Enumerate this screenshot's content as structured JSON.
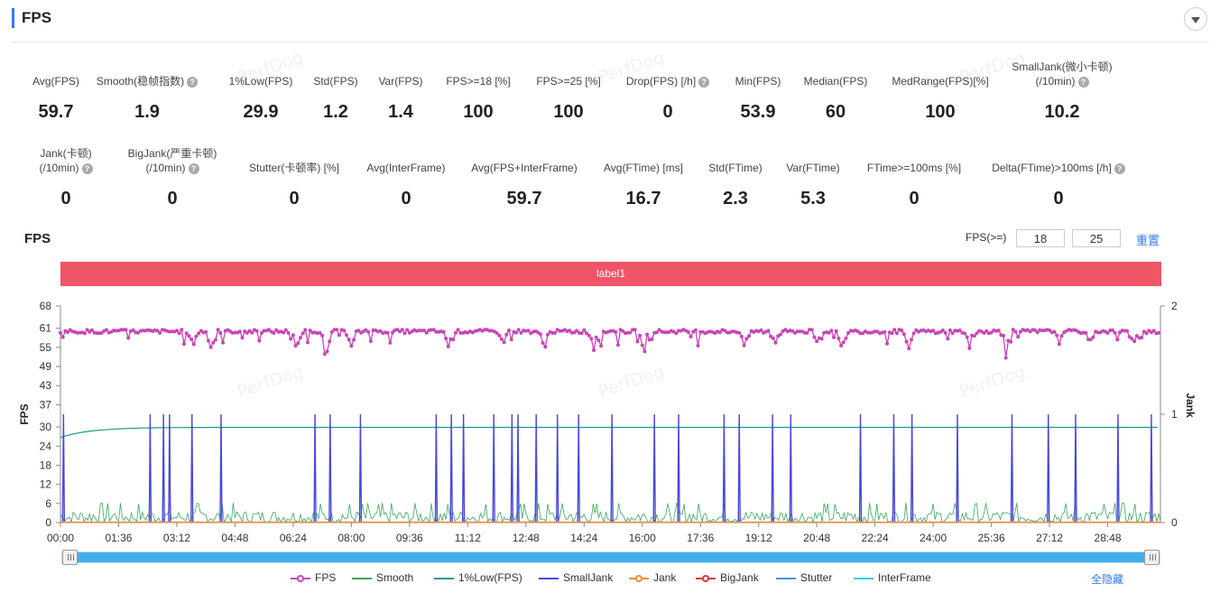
{
  "header": {
    "title": "FPS"
  },
  "metrics_row1": [
    {
      "label": "Avg(FPS)",
      "value": "59.7",
      "help": false
    },
    {
      "label": "Smooth(稳帧指数)",
      "value": "1.9",
      "help": true
    },
    {
      "label": "1%Low(FPS)",
      "value": "29.9",
      "help": false
    },
    {
      "label": "Std(FPS)",
      "value": "1.2",
      "help": false
    },
    {
      "label": "Var(FPS)",
      "value": "1.4",
      "help": false
    },
    {
      "label": "FPS>=18 [%]",
      "value": "100",
      "help": false
    },
    {
      "label": "FPS>=25 [%]",
      "value": "100",
      "help": false
    },
    {
      "label": "Drop(FPS) [/h]",
      "value": "0",
      "help": true
    },
    {
      "label": "Min(FPS)",
      "value": "53.9",
      "help": false
    },
    {
      "label": "Median(FPS)",
      "value": "60",
      "help": false
    },
    {
      "label": "MedRange(FPS)[%]",
      "value": "100",
      "help": false
    },
    {
      "label": "SmallJank(微小卡顿)",
      "label2": "(/10min)",
      "value": "10.2",
      "help": true
    }
  ],
  "metrics_row2": [
    {
      "label": "Jank(卡顿)",
      "label2": "(/10min)",
      "value": "0",
      "help": true
    },
    {
      "label": "BigJank(严重卡顿)",
      "label2": "(/10min)",
      "value": "0",
      "help": true
    },
    {
      "label": "Stutter(卡顿率) [%]",
      "value": "0",
      "help": false
    },
    {
      "label": "Avg(InterFrame)",
      "value": "0",
      "help": false
    },
    {
      "label": "Avg(FPS+InterFrame)",
      "value": "59.7",
      "help": false
    },
    {
      "label": "Avg(FTime) [ms]",
      "value": "16.7",
      "help": false
    },
    {
      "label": "Std(FTime)",
      "value": "2.3",
      "help": false
    },
    {
      "label": "Var(FTime)",
      "value": "5.3",
      "help": false
    },
    {
      "label": "FTime>=100ms [%]",
      "value": "0",
      "help": false
    },
    {
      "label": "Delta(FTime)>100ms [/h]",
      "value": "0",
      "help": true
    }
  ],
  "watermark": "PerfDog",
  "chart_section": {
    "title": "FPS",
    "filter_label": "FPS(>=)",
    "threshold_low": "18",
    "threshold_high": "25",
    "reset_label": "重置",
    "band_label": "label1",
    "hide_all_label": "全隐藏"
  },
  "chart_data": {
    "type": "line",
    "title": "FPS",
    "ylabel": "FPS",
    "y2label": "Jank",
    "ylim": [
      0,
      68
    ],
    "y2lim": [
      0,
      2
    ],
    "yticks": [
      "0",
      "6",
      "12",
      "18",
      "24",
      "30",
      "37",
      "43",
      "49",
      "55",
      "61",
      "68"
    ],
    "y2ticks": [
      "0",
      "1",
      "2"
    ],
    "xticks": [
      "00:00",
      "01:36",
      "03:12",
      "04:48",
      "06:24",
      "08:00",
      "09:36",
      "11:12",
      "12:48",
      "14:24",
      "16:00",
      "17:36",
      "19:12",
      "20:48",
      "22:24",
      "24:00",
      "25:36",
      "27:12",
      "28:48"
    ],
    "x_range_seconds": [
      0,
      1815
    ],
    "fps_baseline": 60,
    "fps_dips_seconds": [
      220,
      250,
      390,
      440,
      480,
      640,
      730,
      800,
      880,
      960,
      1130,
      1180,
      1250,
      1290,
      1400,
      1500,
      1560,
      1650,
      1700,
      1770
    ],
    "onepct_low_final": 29.9,
    "small_jank_seconds": [
      5,
      148,
      170,
      180,
      217,
      265,
      420,
      445,
      495,
      620,
      645,
      665,
      715,
      745,
      755,
      785,
      820,
      855,
      910,
      980,
      1020,
      1095,
      1120,
      1175,
      1205,
      1320,
      1375,
      1405,
      1480,
      1570,
      1630,
      1675,
      1745,
      1800
    ],
    "legend": [
      {
        "name": "FPS",
        "color": "#c846b8",
        "dot": true
      },
      {
        "name": "Smooth",
        "color": "#3aa757",
        "dot": false
      },
      {
        "name": "1%Low(FPS)",
        "color": "#1a9a8a",
        "dot": false
      },
      {
        "name": "SmallJank",
        "color": "#4848d8",
        "dot": false
      },
      {
        "name": "Jank",
        "color": "#f08c3c",
        "dot": true
      },
      {
        "name": "BigJank",
        "color": "#d93a3a",
        "dot": true
      },
      {
        "name": "Stutter",
        "color": "#4a90e2",
        "dot": false
      },
      {
        "name": "InterFrame",
        "color": "#3cc8e0",
        "dot": false
      }
    ]
  }
}
